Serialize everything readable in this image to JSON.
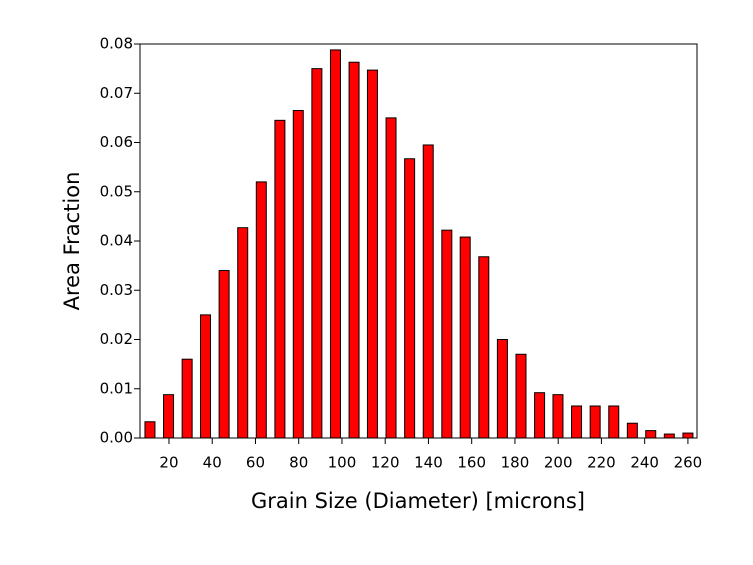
{
  "chart_data": {
    "type": "bar",
    "xlabel": "Grain Size (Diameter) [microns]",
    "ylabel": "Area Fraction",
    "x": [
      11.2,
      19.8,
      28.4,
      36.9,
      45.5,
      54.1,
      62.7,
      71.3,
      79.8,
      88.4,
      97.0,
      105.6,
      114.1,
      122.7,
      131.3,
      139.9,
      148.5,
      157.0,
      165.6,
      174.2,
      182.8,
      191.4,
      199.9,
      208.5,
      217.1,
      225.7,
      234.3,
      242.8,
      251.4,
      260.0
    ],
    "values": [
      0.0033,
      0.0088,
      0.016,
      0.025,
      0.034,
      0.0427,
      0.052,
      0.0645,
      0.0665,
      0.075,
      0.0788,
      0.0763,
      0.0747,
      0.065,
      0.0567,
      0.0595,
      0.0422,
      0.0408,
      0.0368,
      0.02,
      0.017,
      0.0092,
      0.0088,
      0.0065,
      0.0065,
      0.0065,
      0.003,
      0.0015,
      0.0008,
      0.001
    ],
    "color": "#ff0000",
    "xlim": [
      6.6,
      264.2
    ],
    "xticks": [
      20,
      40,
      60,
      80,
      100,
      120,
      140,
      160,
      180,
      200,
      220,
      240,
      260
    ],
    "ylim": [
      0,
      0.08
    ],
    "yticks": [
      {
        "value": 0,
        "label": "0.00"
      },
      0.01,
      0.02,
      0.03,
      0.04,
      0.05,
      0.06,
      0.07,
      0.08
    ],
    "grid": false
  }
}
